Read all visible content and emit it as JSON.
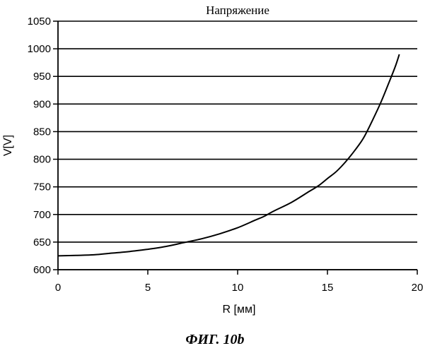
{
  "figure": {
    "caption": "ФИГ. 10b"
  },
  "chart_data": {
    "type": "line",
    "title": "Напряжение",
    "xlabel": "R [мм]",
    "ylabel": "V[V]",
    "xlim": [
      0,
      20
    ],
    "ylim": [
      600,
      1050
    ],
    "x_ticks": [
      0,
      5,
      10,
      15,
      20
    ],
    "y_ticks": [
      600,
      650,
      700,
      750,
      800,
      850,
      900,
      950,
      1000,
      1050
    ],
    "grid": {
      "horizontal": true,
      "vertical": false
    },
    "series": [
      {
        "color": "#000000",
        "points": [
          [
            0,
            625
          ],
          [
            1,
            626
          ],
          [
            2,
            627
          ],
          [
            3,
            630
          ],
          [
            4,
            633
          ],
          [
            5,
            637
          ],
          [
            6,
            642
          ],
          [
            7,
            649
          ],
          [
            8,
            656
          ],
          [
            9,
            665
          ],
          [
            10,
            676
          ],
          [
            11,
            690
          ],
          [
            11.5,
            697
          ],
          [
            12,
            706
          ],
          [
            13,
            722
          ],
          [
            14,
            742
          ],
          [
            14.5,
            752
          ],
          [
            15,
            765
          ],
          [
            15.5,
            778
          ],
          [
            16,
            795
          ],
          [
            16.5,
            815
          ],
          [
            17,
            838
          ],
          [
            17.5,
            870
          ],
          [
            18,
            905
          ],
          [
            18.5,
            945
          ],
          [
            18.8,
            970
          ],
          [
            19,
            990
          ]
        ]
      }
    ]
  }
}
